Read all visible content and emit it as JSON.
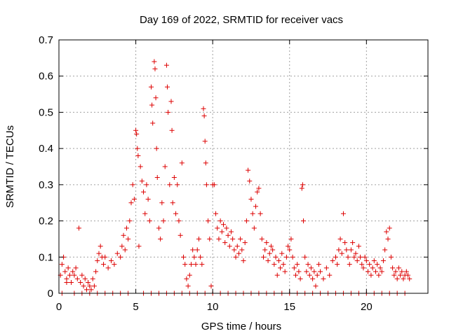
{
  "chart_data": {
    "type": "scatter",
    "title": "Day 169 of 2022, SRMTID for receiver vacs",
    "xlabel": "GPS time / hours",
    "ylabel": "SRMTID / TECUs",
    "xlim": [
      0,
      24
    ],
    "ylim": [
      0,
      0.7
    ],
    "xticks": [
      "0",
      "5",
      "10",
      "15",
      "20"
    ],
    "yticks": [
      "0",
      "0.1",
      "0.2",
      "0.3",
      "0.4",
      "0.5",
      "0.6",
      "0.7"
    ],
    "grid": true,
    "marker": "+",
    "color": "#dd0000",
    "series": [
      {
        "name": "SRMTID",
        "points": [
          [
            0.1,
            0.05
          ],
          [
            0.2,
            0.08
          ],
          [
            0.3,
            0.1
          ],
          [
            0.4,
            0.06
          ],
          [
            0.5,
            0.04
          ],
          [
            0.6,
            0.07
          ],
          [
            0.7,
            0.05
          ],
          [
            0.8,
            0.03
          ],
          [
            0.9,
            0.06
          ],
          [
            1.0,
            0.05
          ],
          [
            1.1,
            0.07
          ],
          [
            1.2,
            0.04
          ],
          [
            1.3,
            0.18
          ],
          [
            1.4,
            0.03
          ],
          [
            1.5,
            0.05
          ],
          [
            1.6,
            0.02
          ],
          [
            1.7,
            0.04
          ],
          [
            1.8,
            0.01
          ],
          [
            1.9,
            0.03
          ],
          [
            2.0,
            0.02
          ],
          [
            2.1,
            0.01
          ],
          [
            2.2,
            0.04
          ],
          [
            2.3,
            0.02
          ],
          [
            2.4,
            0.06
          ],
          [
            2.5,
            0.09
          ],
          [
            2.6,
            0.11
          ],
          [
            2.7,
            0.13
          ],
          [
            2.8,
            0.1
          ],
          [
            2.9,
            0.08
          ],
          [
            3.0,
            0.1
          ],
          [
            3.2,
            0.07
          ],
          [
            3.4,
            0.09
          ],
          [
            3.6,
            0.08
          ],
          [
            3.8,
            0.11
          ],
          [
            4.0,
            0.1
          ],
          [
            4.1,
            0.13
          ],
          [
            4.2,
            0.16
          ],
          [
            4.3,
            0.12
          ],
          [
            4.4,
            0.18
          ],
          [
            4.5,
            0.15
          ],
          [
            4.6,
            0.2
          ],
          [
            4.7,
            0.25
          ],
          [
            4.8,
            0.3
          ],
          [
            4.9,
            0.26
          ],
          [
            5.0,
            0.45
          ],
          [
            5.05,
            0.44
          ],
          [
            5.1,
            0.4
          ],
          [
            5.15,
            0.38
          ],
          [
            5.2,
            0.13
          ],
          [
            5.3,
            0.35
          ],
          [
            5.4,
            0.31
          ],
          [
            5.5,
            0.28
          ],
          [
            5.6,
            0.22
          ],
          [
            5.7,
            0.3
          ],
          [
            5.8,
            0.26
          ],
          [
            5.9,
            0.2
          ],
          [
            6.0,
            0.57
          ],
          [
            6.05,
            0.52
          ],
          [
            6.1,
            0.47
          ],
          [
            6.2,
            0.64
          ],
          [
            6.25,
            0.62
          ],
          [
            6.3,
            0.54
          ],
          [
            6.35,
            0.4
          ],
          [
            6.4,
            0.32
          ],
          [
            6.5,
            0.18
          ],
          [
            6.6,
            0.15
          ],
          [
            6.7,
            0.25
          ],
          [
            6.8,
            0.2
          ],
          [
            6.9,
            0.35
          ],
          [
            7.0,
            0.63
          ],
          [
            7.05,
            0.57
          ],
          [
            7.1,
            0.5
          ],
          [
            7.2,
            0.3
          ],
          [
            7.3,
            0.53
          ],
          [
            7.35,
            0.45
          ],
          [
            7.4,
            0.25
          ],
          [
            7.5,
            0.32
          ],
          [
            7.6,
            0.22
          ],
          [
            7.7,
            0.3
          ],
          [
            7.8,
            0.2
          ],
          [
            7.9,
            0.16
          ],
          [
            8.0,
            0.36
          ],
          [
            8.1,
            0.1
          ],
          [
            8.2,
            0.08
          ],
          [
            8.3,
            0.04
          ],
          [
            8.4,
            0.02
          ],
          [
            8.5,
            0.05
          ],
          [
            8.6,
            0.08
          ],
          [
            8.7,
            0.12
          ],
          [
            8.8,
            0.1
          ],
          [
            8.9,
            0.08
          ],
          [
            9.0,
            0.12
          ],
          [
            9.1,
            0.15
          ],
          [
            9.2,
            0.1
          ],
          [
            9.3,
            0.08
          ],
          [
            9.4,
            0.51
          ],
          [
            9.45,
            0.49
          ],
          [
            9.5,
            0.42
          ],
          [
            9.55,
            0.36
          ],
          [
            9.6,
            0.3
          ],
          [
            9.7,
            0.2
          ],
          [
            9.8,
            0.15
          ],
          [
            9.9,
            0.02
          ],
          [
            10.0,
            0.3
          ],
          [
            10.1,
            0.3
          ],
          [
            10.2,
            0.22
          ],
          [
            10.3,
            0.18
          ],
          [
            10.4,
            0.15
          ],
          [
            10.5,
            0.2
          ],
          [
            10.6,
            0.17
          ],
          [
            10.7,
            0.19
          ],
          [
            10.8,
            0.14
          ],
          [
            10.9,
            0.18
          ],
          [
            11.0,
            0.16
          ],
          [
            11.1,
            0.13
          ],
          [
            11.2,
            0.17
          ],
          [
            11.3,
            0.15
          ],
          [
            11.4,
            0.12
          ],
          [
            11.5,
            0.1
          ],
          [
            11.6,
            0.13
          ],
          [
            11.7,
            0.11
          ],
          [
            11.8,
            0.15
          ],
          [
            11.9,
            0.12
          ],
          [
            12.0,
            0.09
          ],
          [
            12.1,
            0.14
          ],
          [
            12.2,
            0.2
          ],
          [
            12.3,
            0.34
          ],
          [
            12.4,
            0.31
          ],
          [
            12.5,
            0.26
          ],
          [
            12.6,
            0.22
          ],
          [
            12.7,
            0.18
          ],
          [
            12.8,
            0.24
          ],
          [
            12.9,
            0.28
          ],
          [
            13.0,
            0.29
          ],
          [
            13.1,
            0.22
          ],
          [
            13.2,
            0.15
          ],
          [
            13.3,
            0.1
          ],
          [
            13.4,
            0.12
          ],
          [
            13.5,
            0.14
          ],
          [
            13.6,
            0.09
          ],
          [
            13.7,
            0.11
          ],
          [
            13.8,
            0.13
          ],
          [
            13.9,
            0.12
          ],
          [
            14.0,
            0.08
          ],
          [
            14.1,
            0.1
          ],
          [
            14.2,
            0.05
          ],
          [
            14.3,
            0.09
          ],
          [
            14.4,
            0.07
          ],
          [
            14.5,
            0.11
          ],
          [
            14.6,
            0.08
          ],
          [
            14.7,
            0.06
          ],
          [
            14.8,
            0.1
          ],
          [
            14.9,
            0.13
          ],
          [
            15.0,
            0.12
          ],
          [
            15.1,
            0.15
          ],
          [
            15.2,
            0.1
          ],
          [
            15.3,
            0.07
          ],
          [
            15.4,
            0.05
          ],
          [
            15.5,
            0.08
          ],
          [
            15.6,
            0.06
          ],
          [
            15.7,
            0.04
          ],
          [
            15.8,
            0.29
          ],
          [
            15.85,
            0.3
          ],
          [
            15.9,
            0.2
          ],
          [
            16.0,
            0.1
          ],
          [
            16.1,
            0.06
          ],
          [
            16.2,
            0.08
          ],
          [
            16.3,
            0.05
          ],
          [
            16.4,
            0.07
          ],
          [
            16.5,
            0.04
          ],
          [
            16.6,
            0.06
          ],
          [
            16.7,
            0.02
          ],
          [
            16.8,
            0.05
          ],
          [
            16.9,
            0.08
          ],
          [
            17.0,
            0.06
          ],
          [
            17.2,
            0.04
          ],
          [
            17.4,
            0.07
          ],
          [
            17.6,
            0.05
          ],
          [
            17.8,
            0.09
          ],
          [
            18.0,
            0.1
          ],
          [
            18.1,
            0.08
          ],
          [
            18.2,
            0.12
          ],
          [
            18.3,
            0.15
          ],
          [
            18.4,
            0.11
          ],
          [
            18.5,
            0.22
          ],
          [
            18.6,
            0.14
          ],
          [
            18.7,
            0.12
          ],
          [
            18.8,
            0.1
          ],
          [
            18.9,
            0.08
          ],
          [
            19.0,
            0.12
          ],
          [
            19.1,
            0.14
          ],
          [
            19.2,
            0.1
          ],
          [
            19.3,
            0.11
          ],
          [
            19.4,
            0.09
          ],
          [
            19.5,
            0.13
          ],
          [
            19.6,
            0.1
          ],
          [
            19.7,
            0.08
          ],
          [
            19.8,
            0.07
          ],
          [
            19.9,
            0.1
          ],
          [
            20.0,
            0.09
          ],
          [
            20.1,
            0.06
          ],
          [
            20.2,
            0.08
          ],
          [
            20.3,
            0.05
          ],
          [
            20.4,
            0.07
          ],
          [
            20.5,
            0.09
          ],
          [
            20.6,
            0.06
          ],
          [
            20.7,
            0.08
          ],
          [
            20.8,
            0.05
          ],
          [
            20.9,
            0.07
          ],
          [
            21.0,
            0.06
          ],
          [
            21.1,
            0.09
          ],
          [
            21.2,
            0.12
          ],
          [
            21.3,
            0.17
          ],
          [
            21.4,
            0.15
          ],
          [
            21.5,
            0.18
          ],
          [
            21.6,
            0.1
          ],
          [
            21.7,
            0.07
          ],
          [
            21.8,
            0.05
          ],
          [
            21.9,
            0.06
          ],
          [
            22.0,
            0.04
          ],
          [
            22.1,
            0.07
          ],
          [
            22.2,
            0.05
          ],
          [
            22.3,
            0.06
          ],
          [
            22.4,
            0.04
          ],
          [
            22.5,
            0.05
          ],
          [
            22.6,
            0.06
          ],
          [
            22.7,
            0.05
          ],
          [
            22.8,
            0.04
          ],
          [
            0.5,
            0.03
          ],
          [
            1.5,
            0.0
          ],
          [
            2.0,
            0.0
          ],
          [
            3.0,
            0.0
          ],
          [
            4.0,
            0.0
          ],
          [
            5.5,
            0.0
          ],
          [
            6.5,
            0.0
          ],
          [
            7.5,
            0.0
          ],
          [
            8.5,
            0.0
          ],
          [
            9.0,
            0.0
          ],
          [
            10.5,
            0.0
          ],
          [
            11.5,
            0.0
          ],
          [
            12.5,
            0.0
          ],
          [
            13.5,
            0.0
          ],
          [
            14.5,
            0.0
          ],
          [
            15.5,
            0.0
          ],
          [
            16.5,
            0.0
          ],
          [
            17.5,
            0.0
          ],
          [
            18.5,
            0.0
          ],
          [
            19.5,
            0.0
          ],
          [
            20.5,
            0.0
          ],
          [
            21.5,
            0.0
          ],
          [
            22.5,
            0.0
          ],
          [
            0.2,
            0.0
          ],
          [
            1.0,
            0.0
          ],
          [
            2.5,
            0.0
          ],
          [
            3.5,
            0.0
          ],
          [
            4.5,
            0.0
          ],
          [
            6.0,
            0.0
          ],
          [
            7.0,
            0.0
          ],
          [
            8.0,
            0.0
          ],
          [
            9.5,
            0.0
          ],
          [
            10.0,
            0.0
          ],
          [
            11.0,
            0.0
          ],
          [
            12.0,
            0.0
          ],
          [
            13.0,
            0.0
          ],
          [
            14.0,
            0.0
          ],
          [
            15.0,
            0.0
          ],
          [
            16.0,
            0.0
          ],
          [
            17.0,
            0.0
          ],
          [
            18.0,
            0.0
          ],
          [
            19.0,
            0.0
          ],
          [
            20.0,
            0.0
          ],
          [
            21.0,
            0.0
          ],
          [
            22.0,
            0.0
          ]
        ]
      }
    ]
  }
}
